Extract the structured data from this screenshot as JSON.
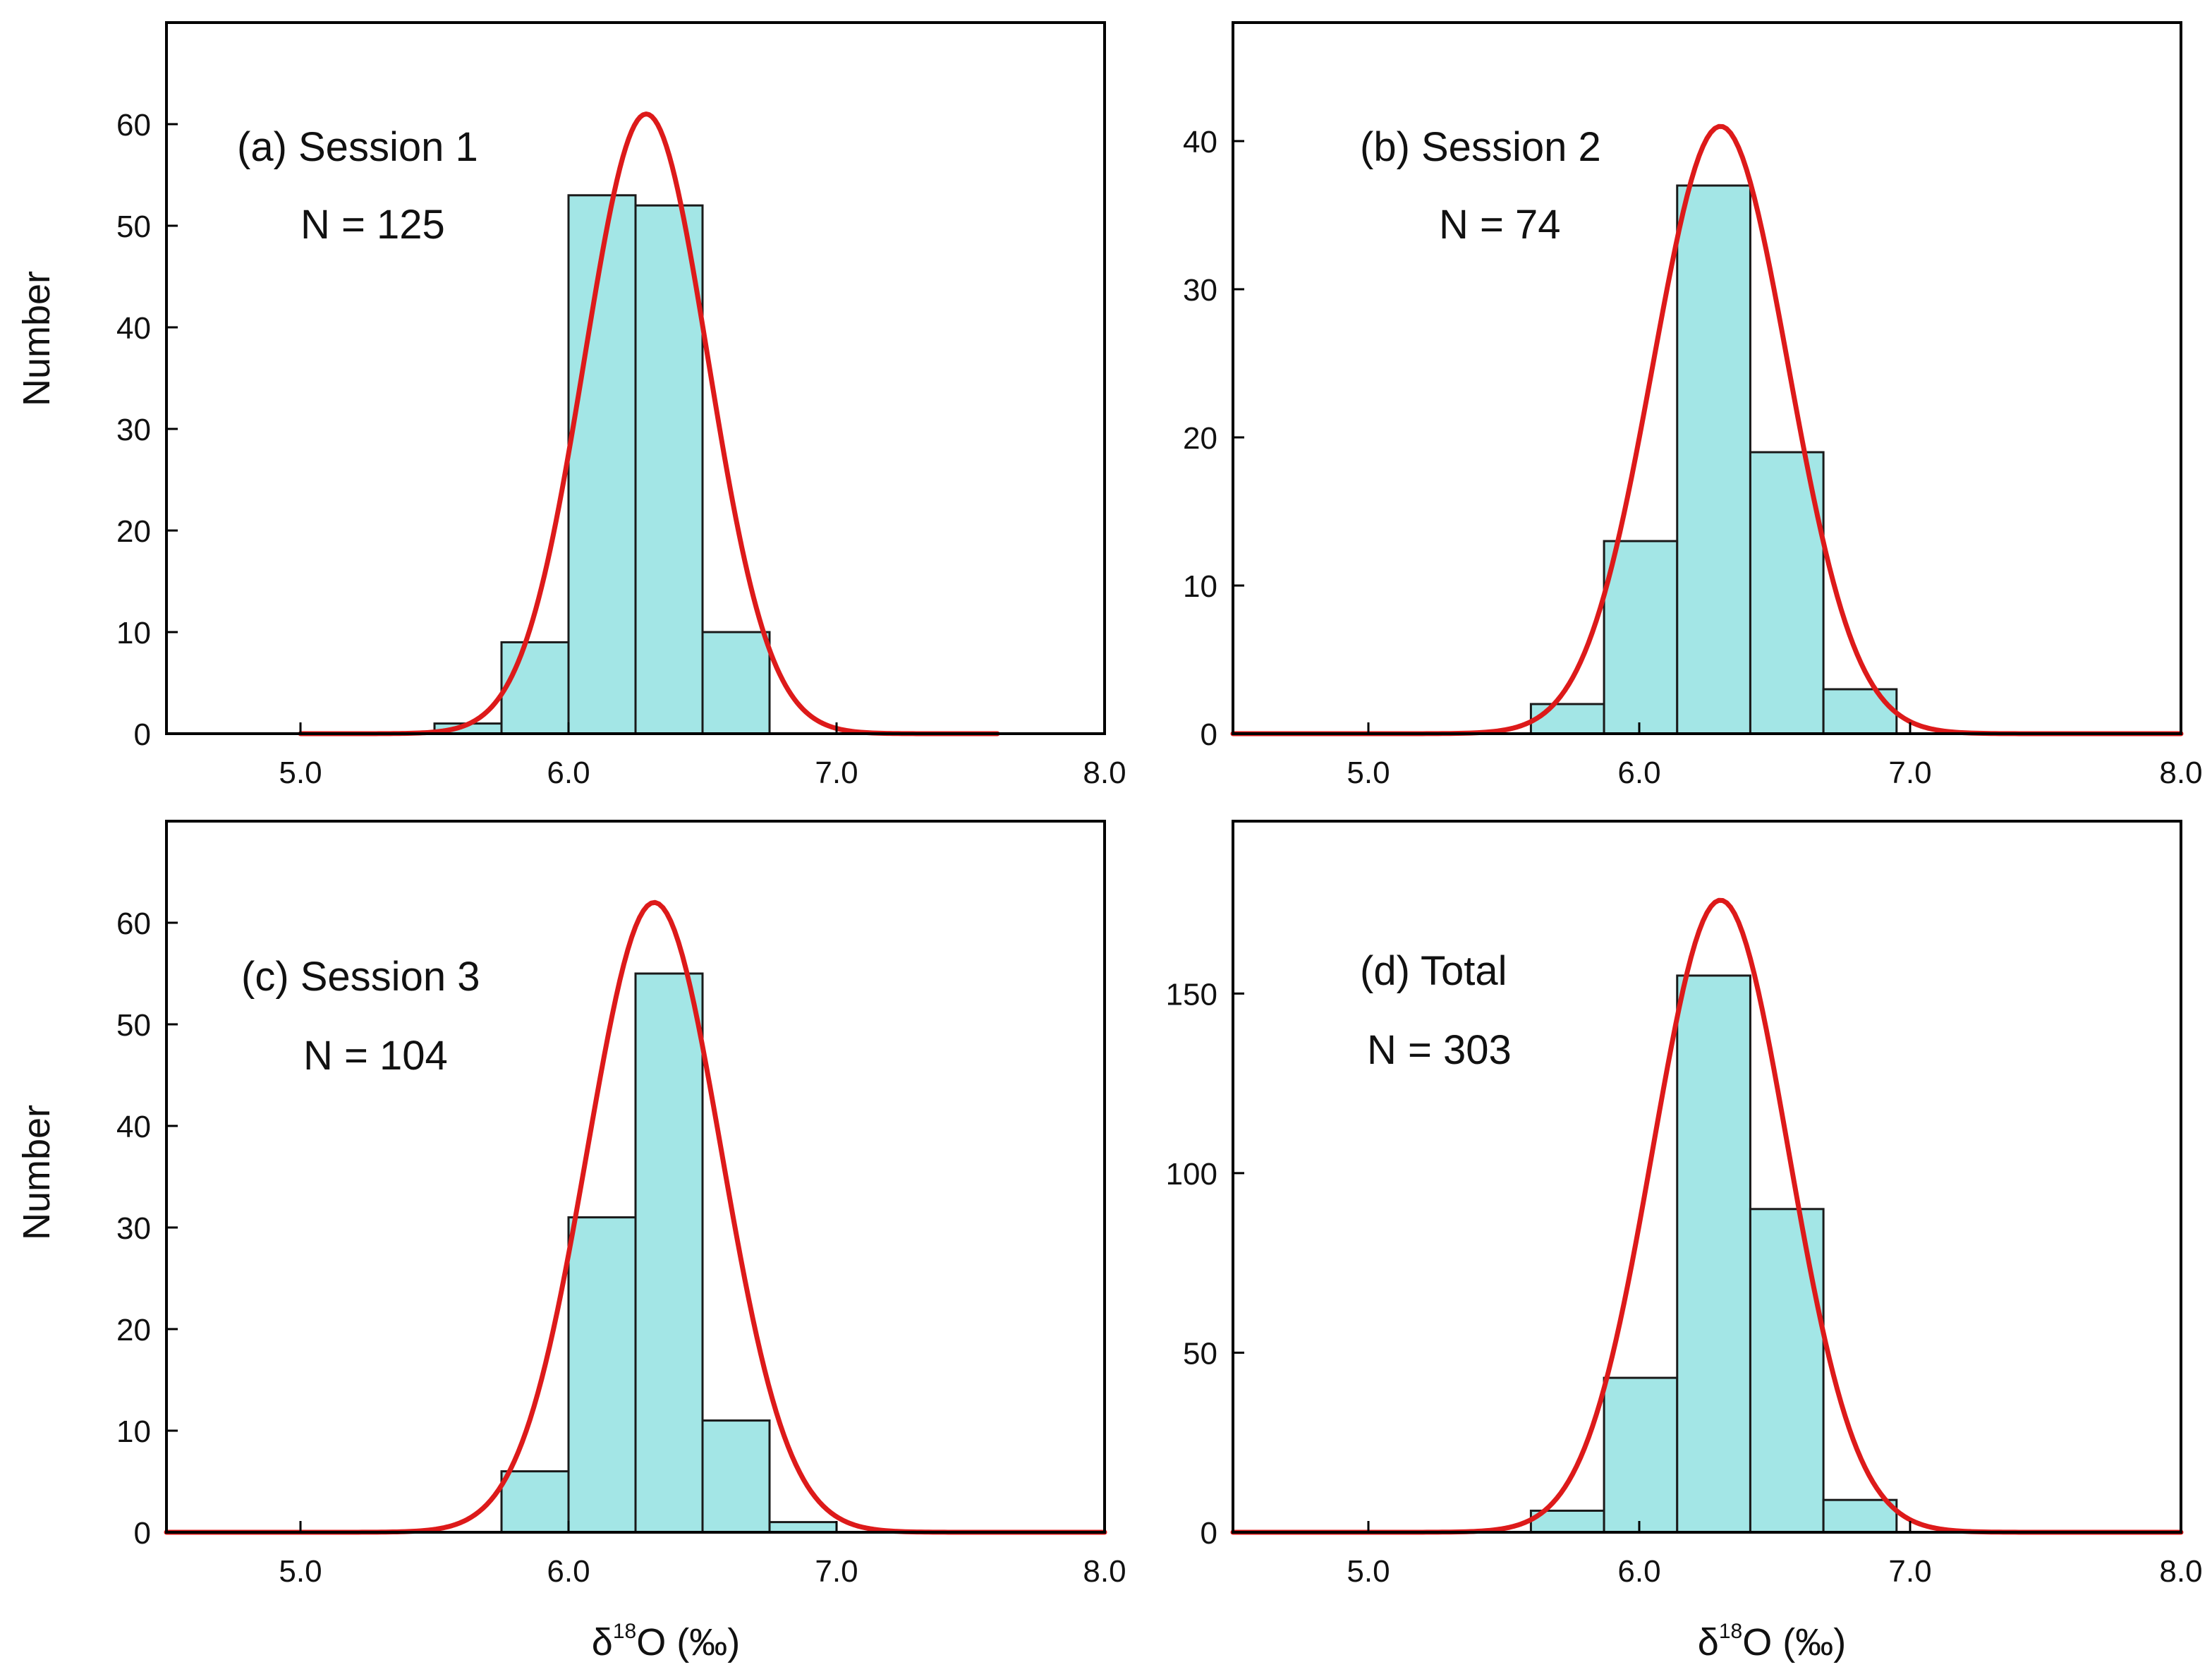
{
  "figure": {
    "ylabel": "Number",
    "xlabel_main": "δ",
    "xlabel_sup": "18",
    "xlabel_rest": "O (‰)",
    "colors": {
      "bar_fill": "#a3e6e6",
      "bar_edge": "#1a1a1a",
      "curve": "#dd1a1a",
      "axis": "#000000",
      "background": "#ffffff"
    }
  },
  "chart_data": [
    {
      "type": "bar",
      "title": "(a) Session 1",
      "n_label": "N = 125",
      "xlabel": "",
      "ylabel": "Number",
      "xlim": [
        4.5,
        8.0
      ],
      "ylim": [
        0,
        70
      ],
      "xticks": [
        5.0,
        6.0,
        7.0,
        8.0
      ],
      "xtick_labels": [
        "5.0",
        "6.0",
        "7.0",
        "8.0"
      ],
      "yticks": [
        0,
        10,
        20,
        30,
        40,
        50,
        60
      ],
      "ytick_labels": [
        "0",
        "10",
        "20",
        "30",
        "40",
        "50",
        "60"
      ],
      "bins": [
        {
          "x0": 5.5,
          "x1": 5.75,
          "count": 1
        },
        {
          "x0": 5.75,
          "x1": 6.0,
          "count": 9
        },
        {
          "x0": 6.0,
          "x1": 6.25,
          "count": 53
        },
        {
          "x0": 6.25,
          "x1": 6.5,
          "count": 52
        },
        {
          "x0": 6.5,
          "x1": 6.75,
          "count": 10
        }
      ],
      "fit": {
        "type": "gaussian",
        "mean": 6.29,
        "peak": 61,
        "sigma": 0.23,
        "x_from": 5.0,
        "x_to": 7.6
      }
    },
    {
      "type": "bar",
      "title": "(b) Session 2",
      "n_label": "N = 74",
      "xlabel": "",
      "ylabel": "",
      "xlim": [
        4.5,
        8.0
      ],
      "ylim": [
        0,
        48
      ],
      "xticks": [
        5.0,
        6.0,
        7.0,
        8.0
      ],
      "xtick_labels": [
        "5.0",
        "6.0",
        "7.0",
        "8.0"
      ],
      "yticks": [
        0,
        10,
        20,
        30,
        40
      ],
      "ytick_labels": [
        "0",
        "10",
        "20",
        "30",
        "40"
      ],
      "bins": [
        {
          "x0": 5.6,
          "x1": 5.87,
          "count": 2
        },
        {
          "x0": 5.87,
          "x1": 6.14,
          "count": 13
        },
        {
          "x0": 6.14,
          "x1": 6.41,
          "count": 37
        },
        {
          "x0": 6.41,
          "x1": 6.68,
          "count": 19
        },
        {
          "x0": 6.68,
          "x1": 6.95,
          "count": 3
        }
      ],
      "fit": {
        "type": "gaussian",
        "mean": 6.3,
        "peak": 41,
        "sigma": 0.25,
        "x_from": 4.5,
        "x_to": 8.0
      }
    },
    {
      "type": "bar",
      "title": "(c) Session 3",
      "n_label": "N = 104",
      "xlabel": "δ18O (‰)",
      "ylabel": "Number",
      "xlim": [
        4.5,
        8.0
      ],
      "ylim": [
        0,
        70
      ],
      "xticks": [
        5.0,
        6.0,
        7.0,
        8.0
      ],
      "xtick_labels": [
        "5.0",
        "6.0",
        "7.0",
        "8.0"
      ],
      "yticks": [
        0,
        10,
        20,
        30,
        40,
        50,
        60
      ],
      "ytick_labels": [
        "0",
        "10",
        "20",
        "30",
        "40",
        "50",
        "60"
      ],
      "bins": [
        {
          "x0": 5.75,
          "x1": 6.0,
          "count": 6
        },
        {
          "x0": 6.0,
          "x1": 6.25,
          "count": 31
        },
        {
          "x0": 6.25,
          "x1": 6.5,
          "count": 55
        },
        {
          "x0": 6.5,
          "x1": 6.75,
          "count": 11
        },
        {
          "x0": 6.75,
          "x1": 7.0,
          "count": 1
        }
      ],
      "fit": {
        "type": "gaussian",
        "mean": 6.32,
        "peak": 62,
        "sigma": 0.25,
        "x_from": 4.5,
        "x_to": 8.0
      }
    },
    {
      "type": "bar",
      "title": "(d) Total",
      "n_label": "N = 303",
      "xlabel": "δ18O (‰)",
      "ylabel": "",
      "xlim": [
        4.5,
        8.0
      ],
      "ylim": [
        0,
        198
      ],
      "xticks": [
        5.0,
        6.0,
        7.0,
        8.0
      ],
      "xtick_labels": [
        "5.0",
        "6.0",
        "7.0",
        "8.0"
      ],
      "yticks": [
        0,
        50,
        100,
        150
      ],
      "ytick_labels": [
        "0",
        "50",
        "100",
        "150"
      ],
      "bins": [
        {
          "x0": 5.6,
          "x1": 5.87,
          "count": 6
        },
        {
          "x0": 5.87,
          "x1": 6.14,
          "count": 43
        },
        {
          "x0": 6.14,
          "x1": 6.41,
          "count": 155
        },
        {
          "x0": 6.41,
          "x1": 6.68,
          "count": 90
        },
        {
          "x0": 6.68,
          "x1": 6.95,
          "count": 9
        }
      ],
      "fit": {
        "type": "gaussian",
        "mean": 6.3,
        "peak": 176,
        "sigma": 0.25,
        "x_from": 4.5,
        "x_to": 8.0
      }
    }
  ]
}
